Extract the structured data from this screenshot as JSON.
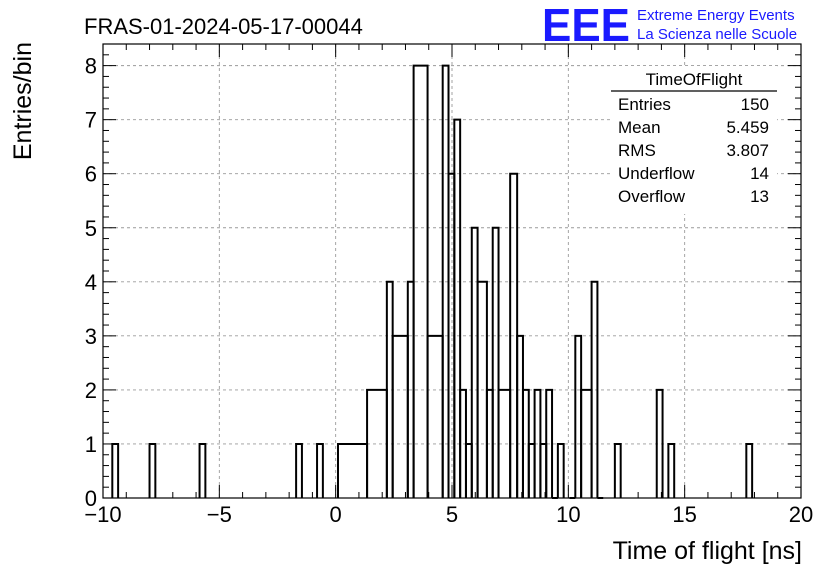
{
  "header": {
    "run_title": "FRAS-01-2024-05-17-00044",
    "logo_text": "EEE",
    "logo_line1": "Extreme Energy Events",
    "logo_line2": "La Scienza nelle Scuole",
    "logo_color": "#1a1aff"
  },
  "stats_box": {
    "title": "TimeOfFlight",
    "rows": [
      {
        "label": "Entries",
        "value": "150"
      },
      {
        "label": "Mean",
        "value": "5.459"
      },
      {
        "label": "RMS",
        "value": "3.807"
      },
      {
        "label": "Underflow",
        "value": "14"
      },
      {
        "label": "Overflow",
        "value": "13"
      }
    ]
  },
  "chart_data": {
    "type": "bar",
    "histogram": true,
    "xlabel": "Time of flight [ns]",
    "ylabel": "Entries/bin",
    "xlim": [
      -10,
      20
    ],
    "ylim": [
      0,
      8.4
    ],
    "grid": true,
    "x_ticks": [
      "−10",
      "−5",
      "0",
      "5",
      "10",
      "15",
      "20"
    ],
    "y_ticks": [
      "0",
      "1",
      "2",
      "3",
      "4",
      "5",
      "6",
      "7",
      "8"
    ],
    "x_tick_values": [
      -10,
      -5,
      0,
      5,
      10,
      15,
      20
    ],
    "y_tick_values": [
      0,
      1,
      2,
      3,
      4,
      5,
      6,
      7,
      8
    ],
    "bins": [
      {
        "x0": -9.6,
        "x1": -9.35,
        "y": 1
      },
      {
        "x0": -8.0,
        "x1": -7.75,
        "y": 1
      },
      {
        "x0": -5.85,
        "x1": -5.6,
        "y": 1
      },
      {
        "x0": -1.7,
        "x1": -1.45,
        "y": 1
      },
      {
        "x0": -0.8,
        "x1": -0.55,
        "y": 1
      },
      {
        "x0": 0.1,
        "x1": 1.35,
        "y": 1
      },
      {
        "x0": 1.35,
        "x1": 2.2,
        "y": 2
      },
      {
        "x0": 2.2,
        "x1": 2.45,
        "y": 4
      },
      {
        "x0": 2.45,
        "x1": 3.1,
        "y": 3
      },
      {
        "x0": 3.1,
        "x1": 3.35,
        "y": 4
      },
      {
        "x0": 3.35,
        "x1": 3.95,
        "y": 8
      },
      {
        "x0": 3.95,
        "x1": 4.6,
        "y": 3
      },
      {
        "x0": 4.6,
        "x1": 4.85,
        "y": 8
      },
      {
        "x0": 4.85,
        "x1": 5.1,
        "y": 6
      },
      {
        "x0": 5.1,
        "x1": 5.35,
        "y": 7
      },
      {
        "x0": 5.35,
        "x1": 5.6,
        "y": 2
      },
      {
        "x0": 5.6,
        "x1": 5.85,
        "y": 1
      },
      {
        "x0": 5.85,
        "x1": 6.1,
        "y": 5
      },
      {
        "x0": 6.1,
        "x1": 6.5,
        "y": 4
      },
      {
        "x0": 6.5,
        "x1": 6.75,
        "y": 2
      },
      {
        "x0": 6.75,
        "x1": 7.0,
        "y": 5
      },
      {
        "x0": 7.0,
        "x1": 7.5,
        "y": 2
      },
      {
        "x0": 7.5,
        "x1": 7.8,
        "y": 6
      },
      {
        "x0": 7.8,
        "x1": 8.05,
        "y": 3
      },
      {
        "x0": 8.05,
        "x1": 8.3,
        "y": 2
      },
      {
        "x0": 8.3,
        "x1": 8.55,
        "y": 1
      },
      {
        "x0": 8.55,
        "x1": 8.8,
        "y": 2
      },
      {
        "x0": 8.8,
        "x1": 9.05,
        "y": 1
      },
      {
        "x0": 9.05,
        "x1": 9.3,
        "y": 2
      },
      {
        "x0": 9.3,
        "x1": 9.55,
        "y": 0
      },
      {
        "x0": 9.55,
        "x1": 9.8,
        "y": 1
      },
      {
        "x0": 10.05,
        "x1": 10.3,
        "y": 0
      },
      {
        "x0": 10.3,
        "x1": 10.55,
        "y": 3
      },
      {
        "x0": 10.55,
        "x1": 11.0,
        "y": 2
      },
      {
        "x0": 11.0,
        "x1": 11.25,
        "y": 4
      },
      {
        "x0": 11.25,
        "x1": 11.5,
        "y": 0
      },
      {
        "x0": 12.0,
        "x1": 12.25,
        "y": 1
      },
      {
        "x0": 13.8,
        "x1": 14.05,
        "y": 2
      },
      {
        "x0": 14.3,
        "x1": 14.55,
        "y": 1
      },
      {
        "x0": 17.65,
        "x1": 17.9,
        "y": 1
      }
    ]
  }
}
